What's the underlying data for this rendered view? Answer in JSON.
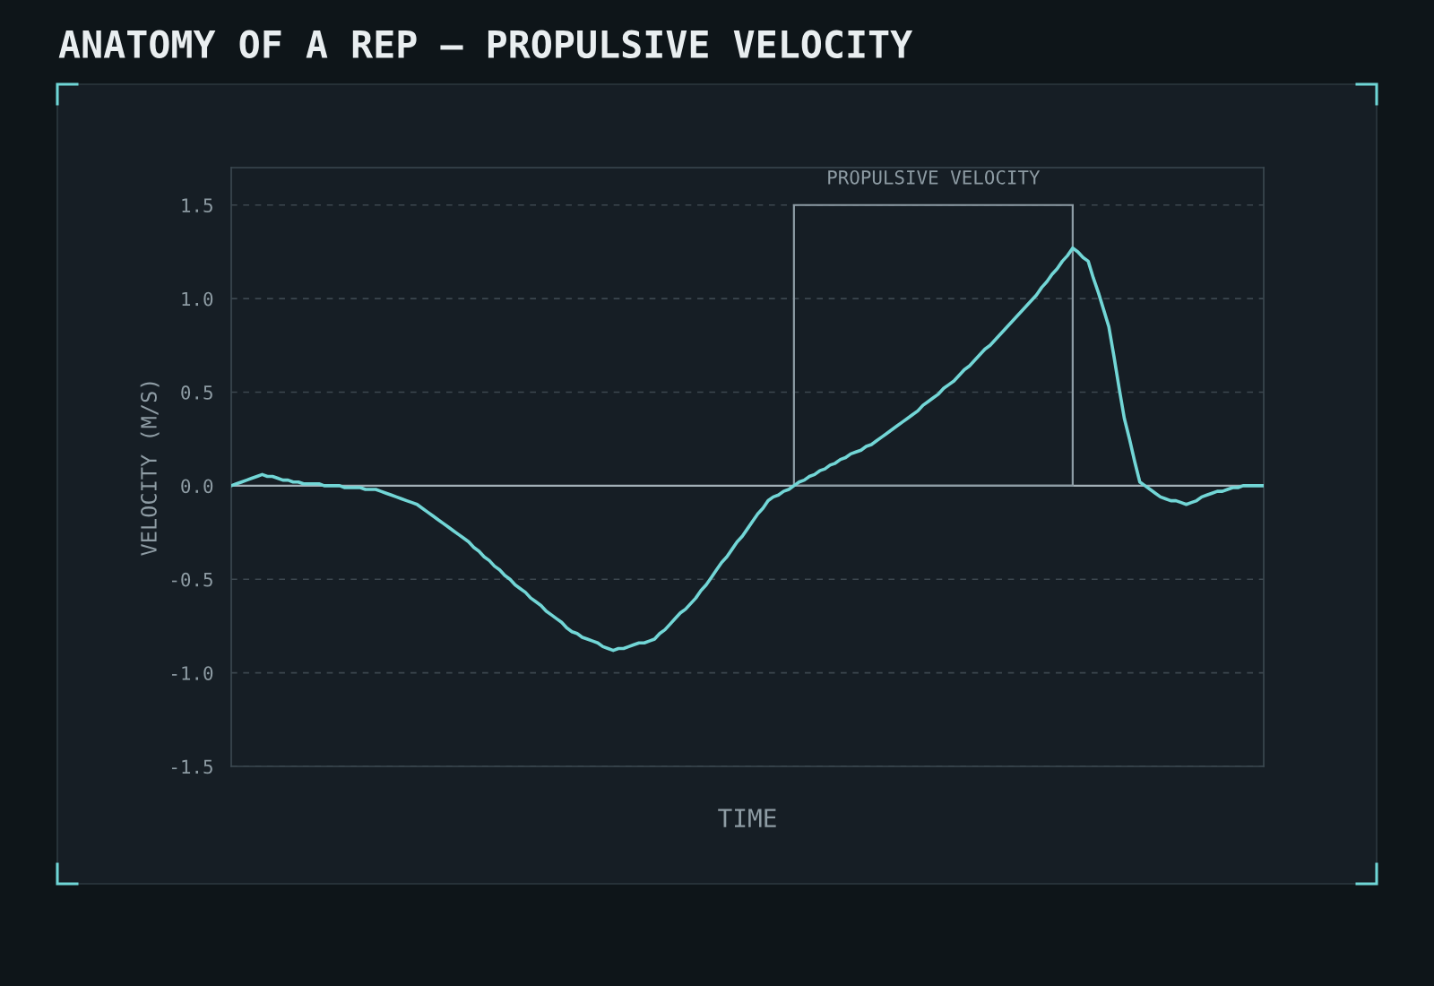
{
  "chart_data": {
    "type": "line",
    "title": "ANATOMY OF A REP — PROPULSIVE VELOCITY",
    "xlabel": "TIME",
    "ylabel": "VELOCITY (M/S)",
    "categories": [
      null,
      null,
      null,
      null,
      null,
      null,
      null,
      null,
      null,
      null,
      null,
      null,
      null,
      null,
      null,
      null,
      null,
      null,
      null,
      null,
      null,
      null,
      null,
      null,
      null,
      null,
      null,
      null,
      null,
      null,
      null,
      null,
      null,
      null,
      null,
      null,
      null,
      null,
      null,
      null,
      null,
      null,
      null,
      null,
      null,
      null,
      null,
      null,
      null,
      null,
      null,
      null,
      null,
      null,
      null,
      null,
      null,
      null,
      null,
      null,
      null,
      null,
      null,
      null,
      null,
      null,
      null,
      null,
      null,
      null,
      null,
      null,
      null,
      null,
      null,
      null,
      null,
      null,
      null,
      null,
      null,
      null,
      null,
      null,
      null,
      null,
      null,
      null,
      null,
      null,
      null,
      null,
      null,
      null,
      null,
      null,
      null,
      null,
      null,
      null,
      null,
      null,
      null,
      null,
      null,
      null,
      null,
      null,
      null,
      null,
      null,
      null,
      null,
      null,
      null,
      null,
      null,
      null,
      null,
      null,
      null,
      null,
      null,
      null,
      null,
      null,
      null,
      null,
      null,
      null,
      null,
      null,
      null,
      null,
      null,
      null,
      null,
      null,
      null,
      null,
      null,
      null,
      null,
      null,
      null,
      null,
      null,
      null,
      null,
      null,
      null,
      null,
      null,
      null,
      null,
      null,
      null,
      null,
      null,
      null,
      null,
      null,
      null,
      null,
      null,
      null,
      null,
      null,
      null,
      null,
      null,
      null,
      null,
      null,
      null,
      null,
      null,
      null,
      null,
      null,
      null,
      null,
      null,
      null,
      null,
      null,
      null,
      null,
      null,
      null,
      null,
      null,
      null,
      null,
      null,
      null,
      null,
      null,
      null,
      null,
      null
    ],
    "series": [
      {
        "color": "#72d6d6",
        "values": [
          0.0,
          0.01,
          0.02,
          0.03,
          0.04,
          0.05,
          0.06,
          0.05,
          0.05,
          0.04,
          0.03,
          0.03,
          0.02,
          0.02,
          0.01,
          0.01,
          0.01,
          0.01,
          0.0,
          0.0,
          0.0,
          0.0,
          -0.01,
          -0.01,
          -0.01,
          -0.01,
          -0.02,
          -0.02,
          -0.02,
          -0.03,
          -0.04,
          -0.05,
          -0.06,
          -0.07,
          -0.08,
          -0.09,
          -0.1,
          -0.12,
          -0.14,
          -0.16,
          -0.18,
          -0.2,
          -0.22,
          -0.24,
          -0.26,
          -0.28,
          -0.3,
          -0.33,
          -0.35,
          -0.38,
          -0.4,
          -0.43,
          -0.45,
          -0.48,
          -0.5,
          -0.53,
          -0.55,
          -0.57,
          -0.6,
          -0.62,
          -0.64,
          -0.67,
          -0.69,
          -0.71,
          -0.73,
          -0.76,
          -0.78,
          -0.79,
          -0.81,
          -0.82,
          -0.83,
          -0.84,
          -0.86,
          -0.87,
          -0.88,
          -0.87,
          -0.87,
          -0.86,
          -0.85,
          -0.84,
          -0.84,
          -0.83,
          -0.82,
          -0.79,
          -0.77,
          -0.74,
          -0.71,
          -0.68,
          -0.66,
          -0.63,
          -0.6,
          -0.56,
          -0.53,
          -0.49,
          -0.45,
          -0.41,
          -0.38,
          -0.34,
          -0.3,
          -0.27,
          -0.23,
          -0.19,
          -0.15,
          -0.12,
          -0.08,
          -0.06,
          -0.05,
          -0.03,
          -0.02,
          0.0,
          0.02,
          0.03,
          0.05,
          0.06,
          0.08,
          0.09,
          0.11,
          0.12,
          0.14,
          0.15,
          0.17,
          0.18,
          0.19,
          0.21,
          0.22,
          0.24,
          0.26,
          0.28,
          0.3,
          0.32,
          0.34,
          0.36,
          0.38,
          0.4,
          0.43,
          0.45,
          0.47,
          0.49,
          0.52,
          0.54,
          0.56,
          0.59,
          0.62,
          0.64,
          0.67,
          0.7,
          0.73,
          0.75,
          0.78,
          0.81,
          0.84,
          0.87,
          0.9,
          0.93,
          0.96,
          0.99,
          1.02,
          1.06,
          1.09,
          1.13,
          1.16,
          1.2,
          1.23,
          1.27,
          1.25,
          1.22,
          1.2,
          1.11,
          1.03,
          0.94,
          0.85,
          0.69,
          0.52,
          0.36,
          0.25,
          0.13,
          0.02,
          0.0,
          -0.02,
          -0.04,
          -0.06,
          -0.07,
          -0.08,
          -0.08,
          -0.09,
          -0.1,
          -0.09,
          -0.08,
          -0.06,
          -0.05,
          -0.04,
          -0.03,
          -0.03,
          -0.02,
          -0.01,
          -0.01,
          0.0,
          0.0,
          0.0,
          0.0,
          0.0
        ]
      }
    ],
    "ylim": [
      -1.5,
      1.7
    ],
    "yticks": [
      -1.5,
      {
        "value": -1.0,
        "label": "-1.0"
      },
      -0.5,
      {
        "value": 0.0,
        "label": "0.0"
      },
      0.5,
      {
        "value": 1.0,
        "label": "1.0"
      },
      1.5
    ],
    "tick_labels": "y",
    "grid": "y",
    "line_style": "solid",
    "ref_lines": [
      {
        "axis": "y",
        "value": 0.0,
        "color": "#a3b0b8"
      }
    ],
    "annotations": [
      "PROPULSIVE VELOCITY"
    ]
  }
}
